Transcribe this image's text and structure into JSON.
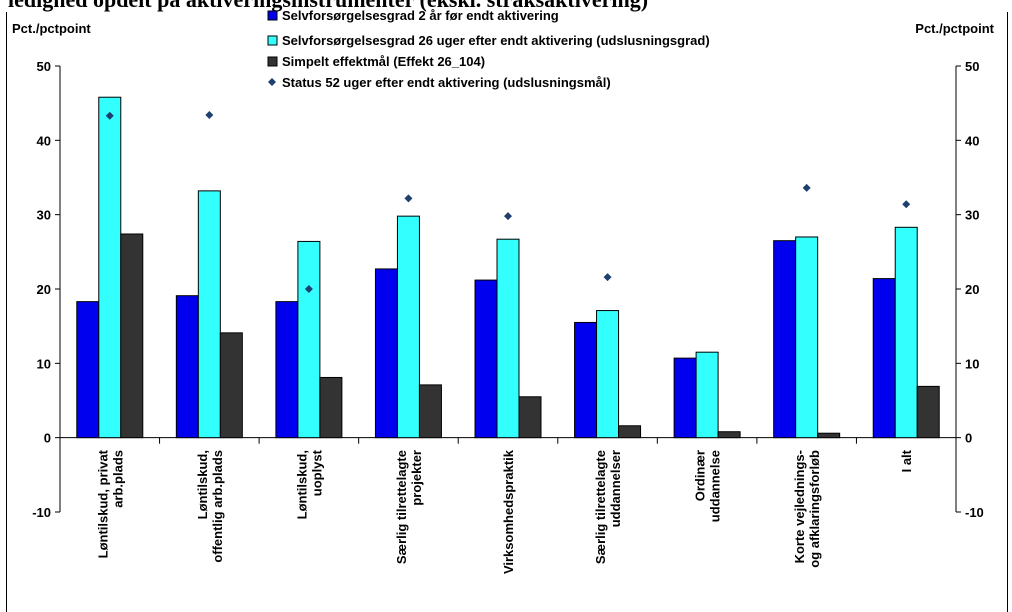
{
  "page_title": "ledighed opdelt på aktiveringsinstrumenter (ekskl. straksaktivering)",
  "chart_data": {
    "type": "bar",
    "y_unit_left": "Pct./pctpoint",
    "y_unit_right": "Pct./pctpoint",
    "ylim": [
      -10,
      50
    ],
    "yticks": [
      -10,
      0,
      10,
      20,
      30,
      40,
      50
    ],
    "grid": false,
    "legend_position": "top-center",
    "categories": [
      [
        "Løntilskud, privat",
        "arb.plads"
      ],
      [
        "Løntilskud,",
        "offentlig arb.plads"
      ],
      [
        "Løntilskud,",
        "uoplyst"
      ],
      [
        "Særlig tilrettelagte",
        "projekter"
      ],
      [
        "Virksomhedspraktik"
      ],
      [
        "Særlig tilrettelagte",
        "uddannelser"
      ],
      [
        "Ordinær",
        "uddannelse"
      ],
      [
        "Korte vejlednings-",
        "og afklaringsforløb"
      ],
      [
        "I alt"
      ]
    ],
    "series": [
      {
        "name": "Selvforsørgelsesgrad 2 år før endt aktivering",
        "kind": "bar",
        "color": "#0000ee",
        "values": [
          18.3,
          19.1,
          18.3,
          22.7,
          21.2,
          15.5,
          10.7,
          26.5,
          21.4
        ]
      },
      {
        "name": "Selvforsørgelsesgrad 26 uger efter endt aktivering (udslusningsgrad)",
        "kind": "bar",
        "color": "#33ffff",
        "values": [
          45.8,
          33.2,
          26.4,
          29.8,
          26.7,
          17.1,
          11.5,
          27.0,
          28.3
        ]
      },
      {
        "name": "Simpelt effektmål (Effekt 26_104)",
        "kind": "bar",
        "color": "#333333",
        "values": [
          27.4,
          14.1,
          8.1,
          7.1,
          5.5,
          1.6,
          0.8,
          0.6,
          6.9
        ]
      },
      {
        "name": "Status 52 uger efter endt aktivering (udslusningsmål)",
        "kind": "marker",
        "color": "#1f3f6f",
        "values": [
          43.3,
          43.4,
          20.0,
          32.2,
          29.8,
          21.6,
          null,
          33.6,
          31.4
        ]
      }
    ]
  }
}
